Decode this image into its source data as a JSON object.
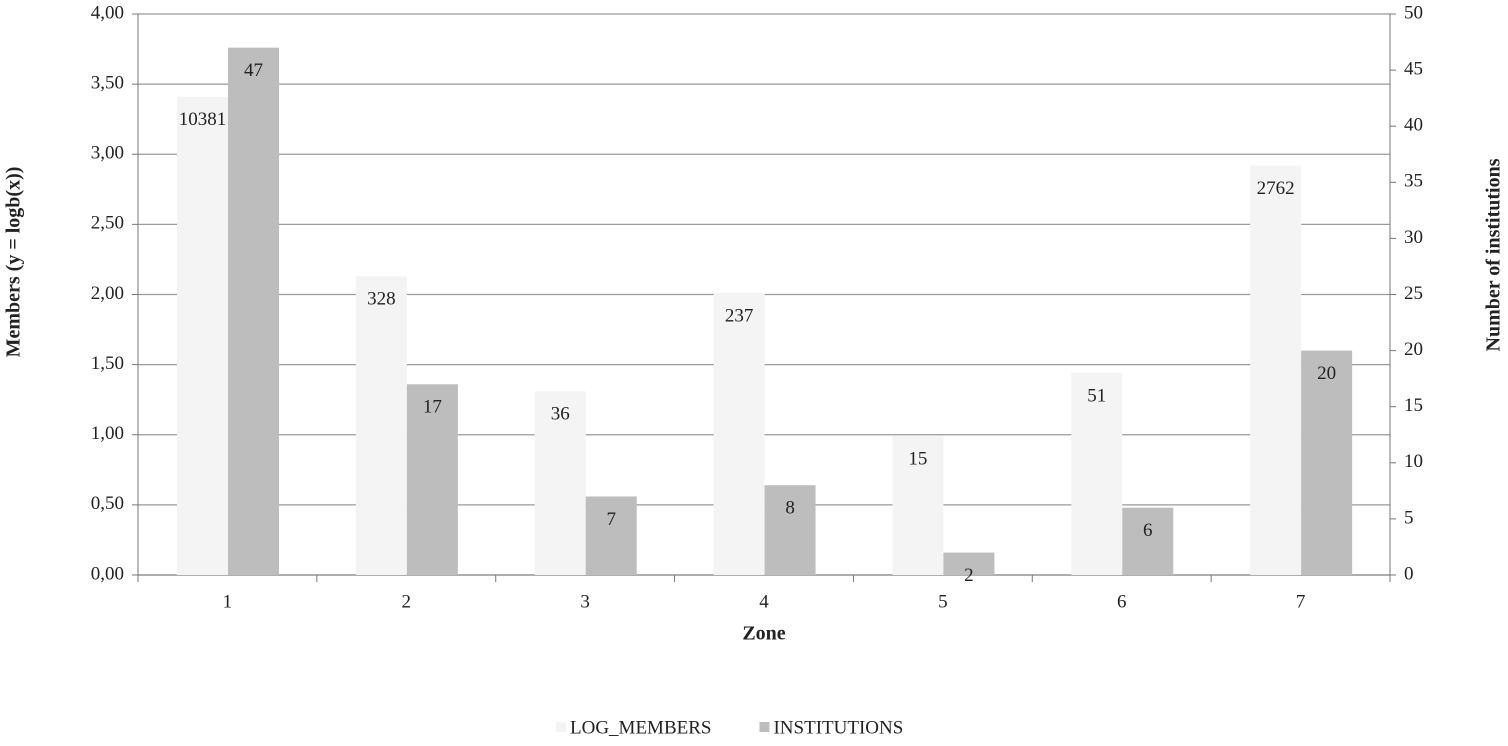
{
  "chart_data": {
    "type": "bar",
    "x_label": "Zone",
    "y_label": "Members (y = logb(x))",
    "y2_label": "Number of institutions",
    "categories": [
      "1",
      "2",
      "3",
      "4",
      "5",
      "6",
      "7"
    ],
    "series": [
      {
        "name": "LOG_MEMBERS",
        "color": "#f4f4f4",
        "values": [
          3.41,
          2.13,
          1.31,
          2.01,
          0.99,
          1.44,
          2.92
        ],
        "members": [
          10381,
          328,
          36,
          237,
          15,
          51,
          2762
        ]
      },
      {
        "name": "INSTITUTIONS",
        "color": "#bdbdbd",
        "axis": "y2",
        "values": [
          47,
          17,
          7,
          8,
          2,
          6,
          20
        ]
      }
    ],
    "ylim": [
      0,
      4
    ],
    "yticks": [
      {
        "value": 0,
        "label": "0,00"
      },
      {
        "value": 0.5,
        "label": "0,50"
      },
      {
        "value": 1,
        "label": "1,00"
      },
      {
        "value": 1.5,
        "label": "1,50"
      },
      {
        "value": 2,
        "label": "2,00"
      },
      {
        "value": 2.5,
        "label": "2,50"
      },
      {
        "value": 3,
        "label": "3,00"
      },
      {
        "value": 3.5,
        "label": "3,50"
      },
      {
        "value": 4,
        "label": "4,00"
      }
    ],
    "y2lim": [
      0,
      50
    ],
    "y2ticks": [
      0,
      5,
      10,
      15,
      20,
      25,
      30,
      35,
      40,
      45,
      50
    ],
    "grid": true,
    "legend": "bottom"
  }
}
